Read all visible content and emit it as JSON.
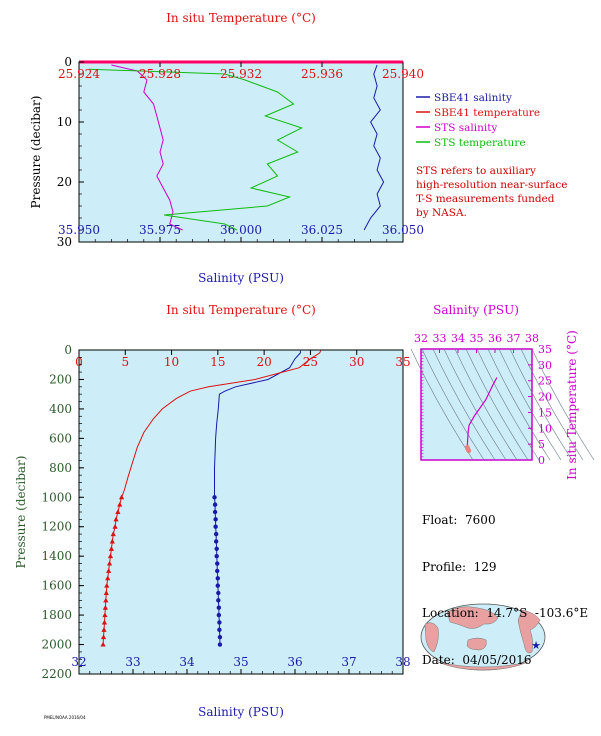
{
  "top_panel": {
    "top_axis_title": "In situ Temperature (°C)",
    "bottom_axis_title": "Salinity (PSU)",
    "y_axis_title": "Pressure (decibar)",
    "legend": [
      {
        "label": "SBE41 salinity",
        "color": "#1a1aa8"
      },
      {
        "label": "SBE41 temperature",
        "color": "#dd1111"
      },
      {
        "label": "STS salinity",
        "color": "#cc00cc"
      },
      {
        "label": "STS temperature",
        "color": "#11bb11"
      }
    ],
    "note_lines": [
      "STS refers to auxiliary",
      "high-resolution near-surface",
      "T-S measurements funded",
      "by NASA."
    ]
  },
  "main_panel": {
    "top_axis_title": "In situ Temperature (°C)",
    "bottom_axis_title": "Salinity (PSU)",
    "y_axis_title": "Pressure (decibar)"
  },
  "ts_panel": {
    "top_axis_title": "Salinity (PSU)",
    "right_axis_title": "In situ Temperature (°C)"
  },
  "float_info": {
    "float": "Float:  7600",
    "profile": "Profile:  129",
    "location": "Location:  14.7°S  -103.6°E",
    "date": "Date:  04/05/2016"
  },
  "credit": "PMEL/NOAA  2016/04",
  "colors": {
    "plot_bg": "#cdeef8",
    "salinity": "#1a1aa8",
    "temperature": "#dd1111",
    "sts_salinity": "#cc00cc",
    "sts_temperature": "#11bb11",
    "axis_red": "#dd1111",
    "axis_blue": "#1a1aa8",
    "axis_green": "#2a5a2a",
    "axis_magenta": "#cc00cc"
  },
  "chart_data": [
    {
      "type": "line",
      "title": "",
      "x_bottom_label": "Salinity (PSU)",
      "x_top_label": "In situ Temperature (°C)",
      "ylabel": "Pressure (decibar)",
      "salinity_xlim": [
        35.95,
        36.05
      ],
      "temperature_xlim": [
        25.924,
        25.94
      ],
      "ylim": [
        0,
        30
      ],
      "y_reversed": true,
      "salinity_ticks": [
        "35.950",
        "35.975",
        "36.000",
        "36.025",
        "36.050"
      ],
      "temperature_ticks": [
        "25.924",
        "25.928",
        "25.932",
        "25.936",
        "25.940"
      ],
      "pressure_ticks": [
        "0",
        "10",
        "20",
        "30"
      ],
      "grid": false,
      "legend_position": "right",
      "series": [
        {
          "name": "SBE41 salinity",
          "axis": "salinity",
          "points": [
            [
              36.042,
              0.5
            ],
            [
              36.041,
              2
            ],
            [
              36.042,
              4
            ],
            [
              36.041,
              6
            ],
            [
              36.043,
              8
            ],
            [
              36.04,
              10
            ],
            [
              36.042,
              12
            ],
            [
              36.041,
              14
            ],
            [
              36.043,
              16
            ],
            [
              36.042,
              18
            ],
            [
              36.044,
              20
            ],
            [
              36.042,
              22
            ],
            [
              36.043,
              24
            ],
            [
              36.04,
              26
            ],
            [
              36.038,
              28
            ]
          ]
        },
        {
          "name": "SBE41 temperature",
          "axis": "temperature",
          "points": []
        },
        {
          "name": "STS salinity",
          "axis": "salinity",
          "points": [
            [
              35.96,
              0.5
            ],
            [
              35.968,
              1.5
            ],
            [
              35.971,
              3
            ],
            [
              35.97,
              5
            ],
            [
              35.973,
              7
            ],
            [
              35.974,
              9
            ],
            [
              35.975,
              11
            ],
            [
              35.976,
              13
            ],
            [
              35.975,
              15
            ],
            [
              35.976,
              17
            ],
            [
              35.974,
              19
            ],
            [
              35.976,
              21
            ],
            [
              35.978,
              23
            ],
            [
              35.979,
              25
            ],
            [
              35.978,
              27
            ],
            [
              35.982,
              28
            ]
          ]
        },
        {
          "name": "STS temperature",
          "axis": "temperature",
          "points": [
            [
              25.9245,
              1.2
            ],
            [
              25.9312,
              2
            ],
            [
              25.9322,
              3
            ],
            [
              25.9338,
              5
            ],
            [
              25.9346,
              7
            ],
            [
              25.9332,
              9
            ],
            [
              25.935,
              11
            ],
            [
              25.9338,
              13
            ],
            [
              25.9348,
              15
            ],
            [
              25.9333,
              17
            ],
            [
              25.9338,
              19
            ],
            [
              25.9325,
              21
            ],
            [
              25.9344,
              22.5
            ],
            [
              25.9333,
              24
            ],
            [
              25.9282,
              25.5
            ],
            [
              25.9312,
              27
            ],
            [
              25.9318,
              28
            ]
          ]
        }
      ]
    },
    {
      "type": "line",
      "title": "",
      "x_bottom_label": "Salinity (PSU)",
      "x_top_label": "In situ Temperature (°C)",
      "ylabel": "Pressure (decibar)",
      "salinity_xlim": [
        32,
        38
      ],
      "temperature_xlim": [
        0,
        35
      ],
      "ylim": [
        0,
        2200
      ],
      "y_reversed": true,
      "salinity_ticks": [
        "32",
        "33",
        "34",
        "35",
        "36",
        "37",
        "38"
      ],
      "temperature_ticks": [
        "0",
        "5",
        "10",
        "15",
        "20",
        "25",
        "30",
        "35"
      ],
      "pressure_ticks": [
        "0",
        "200",
        "400",
        "600",
        "800",
        "1000",
        "1200",
        "1400",
        "1600",
        "1800",
        "2000",
        "2200"
      ],
      "grid": false,
      "series": [
        {
          "name": "Salinity",
          "axis": "salinity",
          "points": [
            [
              36.1,
              5
            ],
            [
              36.1,
              20
            ],
            [
              36.0,
              60
            ],
            [
              35.9,
              120
            ],
            [
              35.5,
              200
            ],
            [
              34.9,
              250
            ],
            [
              34.7,
              280
            ],
            [
              34.6,
              300
            ],
            [
              34.58,
              400
            ],
            [
              34.55,
              500
            ],
            [
              34.53,
              600
            ],
            [
              34.52,
              700
            ],
            [
              34.51,
              800
            ],
            [
              34.51,
              900
            ],
            [
              34.51,
              1000
            ]
          ],
          "marked_points": [
            [
              34.51,
              1000
            ],
            [
              34.52,
              1050
            ],
            [
              34.52,
              1100
            ],
            [
              34.53,
              1150
            ],
            [
              34.53,
              1200
            ],
            [
              34.54,
              1250
            ],
            [
              34.54,
              1300
            ],
            [
              34.55,
              1350
            ],
            [
              34.55,
              1400
            ],
            [
              34.56,
              1450
            ],
            [
              34.56,
              1500
            ],
            [
              34.57,
              1550
            ],
            [
              34.57,
              1600
            ],
            [
              34.58,
              1650
            ],
            [
              34.58,
              1700
            ],
            [
              34.59,
              1750
            ],
            [
              34.59,
              1800
            ],
            [
              34.6,
              1850
            ],
            [
              34.6,
              1900
            ],
            [
              34.61,
              1950
            ],
            [
              34.61,
              2000
            ]
          ]
        },
        {
          "name": "Temperature",
          "axis": "temperature",
          "points": [
            [
              26.1,
              5
            ],
            [
              26.0,
              20
            ],
            [
              25.0,
              60
            ],
            [
              23.8,
              120
            ],
            [
              19.0,
              200
            ],
            [
              14.0,
              250
            ],
            [
              12.0,
              280
            ],
            [
              10.5,
              330
            ],
            [
              9.0,
              400
            ],
            [
              8.0,
              470
            ],
            [
              7.0,
              560
            ],
            [
              6.3,
              660
            ],
            [
              5.8,
              760
            ],
            [
              5.3,
              860
            ],
            [
              4.9,
              950
            ],
            [
              4.6,
              1000
            ]
          ],
          "marked_points": [
            [
              4.6,
              1000
            ],
            [
              4.4,
              1050
            ],
            [
              4.2,
              1100
            ],
            [
              4.0,
              1150
            ],
            [
              3.9,
              1200
            ],
            [
              3.7,
              1250
            ],
            [
              3.6,
              1300
            ],
            [
              3.5,
              1350
            ],
            [
              3.4,
              1400
            ],
            [
              3.3,
              1450
            ],
            [
              3.2,
              1500
            ],
            [
              3.1,
              1550
            ],
            [
              3.0,
              1600
            ],
            [
              2.95,
              1650
            ],
            [
              2.9,
              1700
            ],
            [
              2.85,
              1750
            ],
            [
              2.8,
              1800
            ],
            [
              2.75,
              1850
            ],
            [
              2.7,
              1900
            ],
            [
              2.65,
              1950
            ],
            [
              2.6,
              2000
            ]
          ]
        }
      ]
    },
    {
      "type": "scatter",
      "title": "",
      "xlabel": "Salinity (PSU)",
      "ylabel": "In situ Temperature (°C)",
      "xlim": [
        32,
        38
      ],
      "ylim": [
        0,
        35
      ],
      "x_ticks": [
        "32",
        "33",
        "34",
        "35",
        "36",
        "37",
        "38"
      ],
      "y_ticks": [
        "0",
        "5",
        "10",
        "15",
        "20",
        "25",
        "30",
        "35"
      ],
      "series": [
        {
          "name": "T-S",
          "points": [
            [
              36.1,
              26
            ],
            [
              35.9,
              23.8
            ],
            [
              35.5,
              19
            ],
            [
              34.9,
              14
            ],
            [
              34.6,
              11
            ],
            [
              34.55,
              9
            ],
            [
              34.53,
              7
            ],
            [
              34.52,
              6
            ],
            [
              34.51,
              5
            ],
            [
              34.51,
              4.5
            ],
            [
              34.55,
              3.5
            ],
            [
              34.58,
              3
            ],
            [
              34.61,
              2.6
            ]
          ]
        }
      ]
    }
  ]
}
